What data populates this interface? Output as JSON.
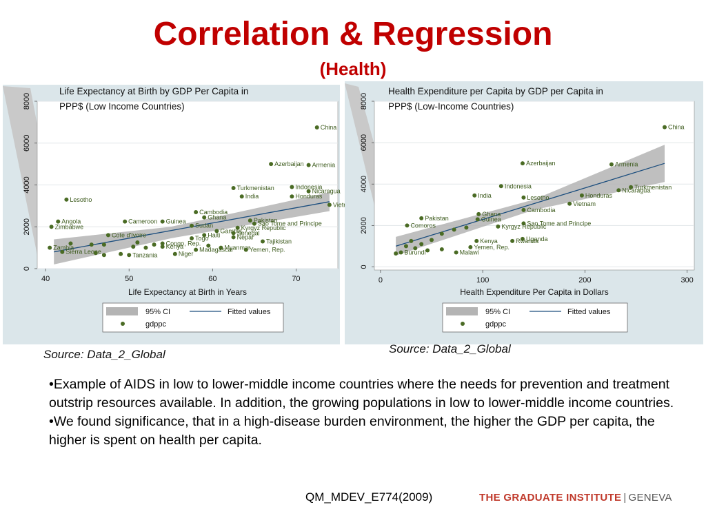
{
  "slide": {
    "title": "Correlation & Regression",
    "subtitle": "(Health)",
    "bullets": [
      "•Example of AIDS in low to lower-middle income countries where the needs for prevention and treatment outstrip resources available.  In addition, the growing populations in low to lower-middle income countries.",
      "•We found significance, that in a high-disease burden environment, the higher the GDP per capita, the higher is spent on health per capita."
    ],
    "footer_course": "QM_MDEV_E774(2009)",
    "logo": {
      "main": "THE GRADUATE INSTITUTE",
      "separator": "|",
      "city": "GENEVA"
    }
  },
  "colors": {
    "title": "#c00000",
    "panel_bg": "#dbe6ea",
    "plot_bg": "#ffffff",
    "ci_band": "#b4b4b4",
    "fitted_line": "#1c4e7e",
    "marker": "#4a6b24",
    "label": "#3c5a1c"
  },
  "chart_data": [
    {
      "type": "scatter",
      "title": "Life Expectancy at Birth by GDP Per Capita in PPP$ (Low Income Countries)",
      "xlabel": "Life Expectancy at Birth in Years",
      "ylabel": "",
      "xlim": [
        39,
        75
      ],
      "ylim": [
        0,
        8000
      ],
      "xticks": [
        40,
        50,
        60,
        70
      ],
      "yticks": [
        0,
        2000,
        4000,
        6000,
        8000
      ],
      "grid": true,
      "legend": {
        "position": "bottom",
        "ci_label": "95% CI",
        "fit_label": "Fitted values",
        "points_label": "gdppc"
      },
      "source": "Source: Data_2_Global",
      "fit": {
        "x": [
          41,
          74
        ],
        "y": [
          800,
          3200
        ]
      },
      "ci": {
        "x": [
          41,
          55,
          74
        ],
        "lower": [
          200,
          1450,
          2750
        ],
        "upper": [
          1400,
          2000,
          3650
        ]
      },
      "points": [
        {
          "x": 72.5,
          "y": 6750,
          "label": "China"
        },
        {
          "x": 67,
          "y": 5000,
          "label": "Azerbaijan"
        },
        {
          "x": 71.5,
          "y": 4950,
          "label": "Armenia"
        },
        {
          "x": 62.5,
          "y": 3850,
          "label": "Turkmenistan"
        },
        {
          "x": 69.5,
          "y": 3900,
          "label": "Indonesia"
        },
        {
          "x": 71.5,
          "y": 3700,
          "label": "Nicaragua"
        },
        {
          "x": 63.5,
          "y": 3450,
          "label": "India"
        },
        {
          "x": 69.5,
          "y": 3450,
          "label": "Honduras"
        },
        {
          "x": 74,
          "y": 3050,
          "label": "Vietnam"
        },
        {
          "x": 42.5,
          "y": 3300,
          "label": "Lesotho"
        },
        {
          "x": 58,
          "y": 2700,
          "label": "Cambodia"
        },
        {
          "x": 59,
          "y": 2450,
          "label": "Ghana"
        },
        {
          "x": 64.5,
          "y": 2300,
          "label": "Pakistan"
        },
        {
          "x": 41.5,
          "y": 2250,
          "label": "Angola"
        },
        {
          "x": 49.5,
          "y": 2250,
          "label": "Cameroon"
        },
        {
          "x": 54,
          "y": 2250,
          "label": "Guinea"
        },
        {
          "x": 65,
          "y": 2150,
          "label": "Sao Tome and Principe"
        },
        {
          "x": 40.7,
          "y": 2000,
          "label": "Zimbabwe"
        },
        {
          "x": 57.5,
          "y": 2050,
          "label": "Sudan"
        },
        {
          "x": 63,
          "y": 1950,
          "label": "Kyrgyz Republic"
        },
        {
          "x": 60.5,
          "y": 1800,
          "label": "Gambia"
        },
        {
          "x": 62.5,
          "y": 1700,
          "label": "Senegal"
        },
        {
          "x": 47.5,
          "y": 1600,
          "label": "Cote d'Ivoire"
        },
        {
          "x": 59,
          "y": 1600,
          "label": "Haiti"
        },
        {
          "x": 62.5,
          "y": 1500,
          "label": "Nepal"
        },
        {
          "x": 57.5,
          "y": 1450,
          "label": "Togo"
        },
        {
          "x": 66,
          "y": 1300,
          "label": "Tajikistan"
        },
        {
          "x": 54,
          "y": 1200,
          "label": "Congo, Rep."
        },
        {
          "x": 43,
          "y": 1200,
          "label": ""
        },
        {
          "x": 45.5,
          "y": 1150,
          "label": ""
        },
        {
          "x": 47,
          "y": 1150,
          "label": ""
        },
        {
          "x": 51,
          "y": 1250,
          "label": ""
        },
        {
          "x": 53,
          "y": 1150,
          "label": ""
        },
        {
          "x": 59.5,
          "y": 1100,
          "label": ""
        },
        {
          "x": 40.5,
          "y": 1000,
          "label": "Zambia"
        },
        {
          "x": 50.5,
          "y": 1050,
          "label": ""
        },
        {
          "x": 52,
          "y": 1000,
          "label": ""
        },
        {
          "x": 54,
          "y": 1050,
          "label": "Kenya"
        },
        {
          "x": 61,
          "y": 1000,
          "label": "Myanmar"
        },
        {
          "x": 64,
          "y": 900,
          "label": "Yemen, Rep."
        },
        {
          "x": 58,
          "y": 900,
          "label": "Madagascar"
        },
        {
          "x": 42,
          "y": 800,
          "label": "Sierra Leone"
        },
        {
          "x": 46,
          "y": 750,
          "label": ""
        },
        {
          "x": 47,
          "y": 650,
          "label": ""
        },
        {
          "x": 49,
          "y": 700,
          "label": ""
        },
        {
          "x": 50,
          "y": 650,
          "label": "Tanzania"
        },
        {
          "x": 55.5,
          "y": 700,
          "label": "Niger"
        }
      ]
    },
    {
      "type": "scatter",
      "title": "Health Expenditure per Capita by GDP per Capita in PPP$ (Low-Income Countries)",
      "xlabel": "Health Expenditure Per Capita in Dollars",
      "ylabel": "",
      "xlim": [
        -6,
        307
      ],
      "ylim": [
        -150,
        8000
      ],
      "xticks": [
        0,
        100,
        200,
        300
      ],
      "yticks": [
        0,
        2000,
        4000,
        6000,
        8000
      ],
      "grid": true,
      "legend": {
        "position": "bottom",
        "ci_label": "95% CI",
        "fit_label": "Fitted values",
        "points_label": "gdppc"
      },
      "source": "Source: Data_2_Global",
      "fit": {
        "x": [
          15,
          278
        ],
        "y": [
          1000,
          5000
        ]
      },
      "ci": {
        "x": [
          15,
          150,
          278
        ],
        "lower": [
          550,
          2750,
          4100
        ],
        "upper": [
          1450,
          3250,
          5900
        ]
      },
      "points": [
        {
          "x": 278,
          "y": 6750,
          "label": "China"
        },
        {
          "x": 139,
          "y": 5000,
          "label": "Azerbaijan"
        },
        {
          "x": 226,
          "y": 4950,
          "label": "Armenia"
        },
        {
          "x": 245,
          "y": 3850,
          "label": "Turkmenistan"
        },
        {
          "x": 233,
          "y": 3700,
          "label": "Nicaragua"
        },
        {
          "x": 118,
          "y": 3900,
          "label": "Indonesia"
        },
        {
          "x": 92,
          "y": 3450,
          "label": "India"
        },
        {
          "x": 140,
          "y": 3350,
          "label": "Lesotho"
        },
        {
          "x": 197,
          "y": 3450,
          "label": "Honduras"
        },
        {
          "x": 185,
          "y": 3050,
          "label": "Vietnam"
        },
        {
          "x": 140,
          "y": 2750,
          "label": "Cambodia"
        },
        {
          "x": 96,
          "y": 2550,
          "label": "Ghana"
        },
        {
          "x": 40,
          "y": 2350,
          "label": "Pakistan"
        },
        {
          "x": 95,
          "y": 2300,
          "label": "Guinea"
        },
        {
          "x": 140,
          "y": 2100,
          "label": "Sao Tome and Principe"
        },
        {
          "x": 26,
          "y": 2000,
          "label": "Comoros"
        },
        {
          "x": 115,
          "y": 1950,
          "label": "Kyrgyz Republic"
        },
        {
          "x": 139,
          "y": 1350,
          "label": "Uganda"
        },
        {
          "x": 129,
          "y": 1250,
          "label": "Rwanda"
        },
        {
          "x": 94,
          "y": 1250,
          "label": "Kenya"
        },
        {
          "x": 60,
          "y": 1600,
          "label": ""
        },
        {
          "x": 72,
          "y": 1800,
          "label": ""
        },
        {
          "x": 84,
          "y": 1900,
          "label": ""
        },
        {
          "x": 50,
          "y": 1300,
          "label": ""
        },
        {
          "x": 40,
          "y": 1100,
          "label": ""
        },
        {
          "x": 30,
          "y": 1250,
          "label": ""
        },
        {
          "x": 25,
          "y": 1000,
          "label": ""
        },
        {
          "x": 34,
          "y": 900,
          "label": ""
        },
        {
          "x": 46,
          "y": 800,
          "label": ""
        },
        {
          "x": 60,
          "y": 850,
          "label": ""
        },
        {
          "x": 88,
          "y": 950,
          "label": "Yemen, Rep."
        },
        {
          "x": 74,
          "y": 700,
          "label": "Malawi"
        },
        {
          "x": 20,
          "y": 700,
          "label": "Burundi"
        },
        {
          "x": 15,
          "y": 650,
          "label": ""
        }
      ]
    }
  ]
}
